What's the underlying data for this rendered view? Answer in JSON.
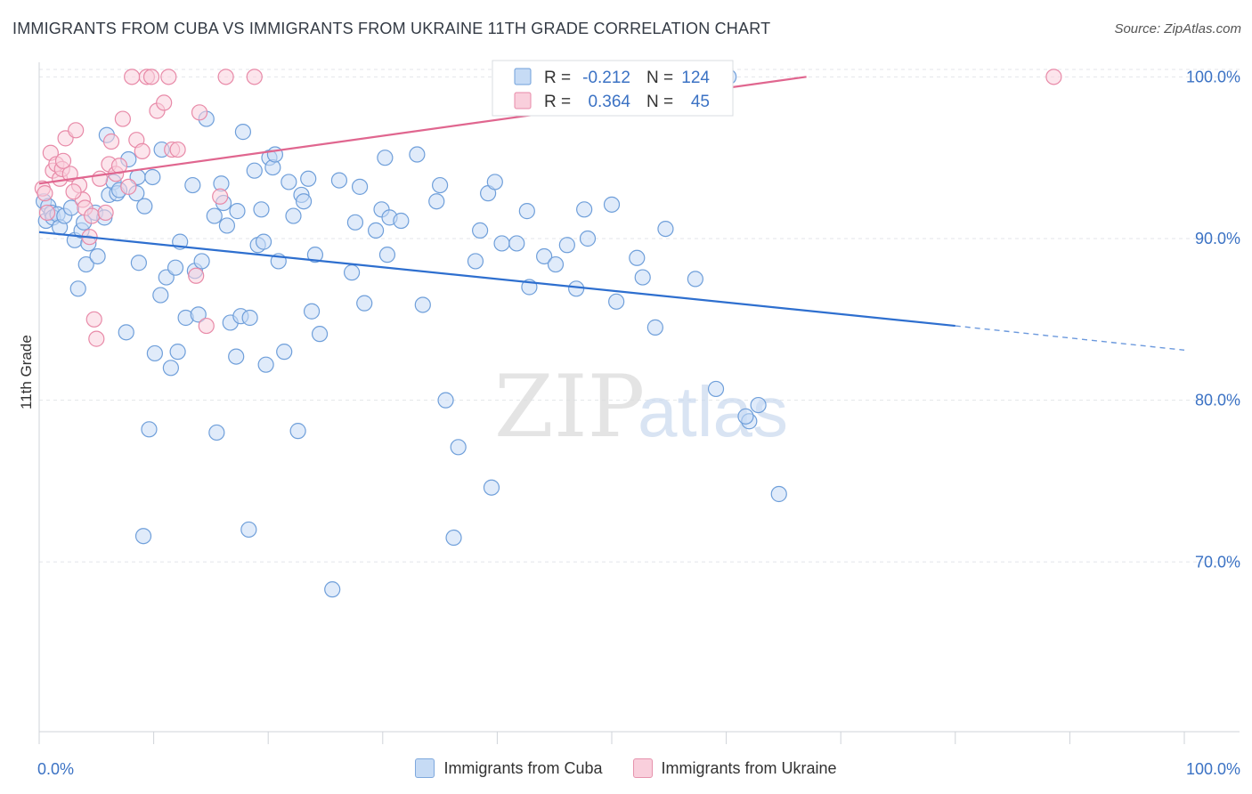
{
  "title": "IMMIGRANTS FROM CUBA VS IMMIGRANTS FROM UKRAINE 11TH GRADE CORRELATION CHART",
  "source": "Source: ZipAtlas.com",
  "watermark": {
    "zip": "ZIP",
    "atlas": "atlas"
  },
  "legend": {
    "r_label": "R =",
    "n_label": "N =",
    "cuba": {
      "r": "-0.212",
      "n": "124"
    },
    "ukraine": {
      "r": "0.364",
      "n": "45"
    }
  },
  "colors": {
    "cuba_fill": "#c6dbf5",
    "cuba_stroke": "#6f9fda",
    "cuba_line": "#2e6fcf",
    "ukraine_fill": "#f9cfdc",
    "ukraine_stroke": "#e88aa8",
    "ukraine_line": "#e0668f",
    "tick_label": "#3b72c4"
  },
  "chart_data": {
    "type": "scatter",
    "title": "IMMIGRANTS FROM CUBA VS IMMIGRANTS FROM UKRAINE 11TH GRADE CORRELATION CHART",
    "xlabel": "",
    "ylabel": "11th Grade",
    "xlim": [
      0,
      100
    ],
    "ylim": [
      59.5,
      100.9
    ],
    "x_tick_labels": [
      "0.0%",
      "100.0%"
    ],
    "y_ticks": [
      70,
      80,
      90,
      100
    ],
    "y_tick_labels": [
      "70.0%",
      "80.0%",
      "90.0%",
      "100.0%"
    ],
    "grid": true,
    "legend_position": "top-center",
    "series": [
      {
        "name": "Immigrants from Cuba",
        "trend": {
          "x0": 0,
          "y0": 90.4,
          "x1": 80,
          "y1": 84.6,
          "dashed_to_x": 100,
          "dashed_to_y": 83.1
        },
        "points": [
          [
            0.4,
            92.3
          ],
          [
            0.6,
            91.1
          ],
          [
            0.8,
            92.0
          ],
          [
            1.1,
            91.6
          ],
          [
            1.2,
            91.3
          ],
          [
            1.6,
            91.5
          ],
          [
            1.8,
            90.7
          ],
          [
            2.2,
            91.4
          ],
          [
            2.8,
            91.9
          ],
          [
            3.1,
            89.9
          ],
          [
            3.4,
            86.9
          ],
          [
            3.7,
            90.5
          ],
          [
            3.9,
            91.0
          ],
          [
            4.1,
            88.4
          ],
          [
            4.3,
            89.7
          ],
          [
            4.9,
            91.6
          ],
          [
            5.1,
            88.9
          ],
          [
            5.7,
            91.3
          ],
          [
            5.9,
            96.4
          ],
          [
            6.1,
            92.7
          ],
          [
            6.5,
            93.5
          ],
          [
            6.8,
            92.8
          ],
          [
            7.0,
            93.0
          ],
          [
            7.6,
            84.2
          ],
          [
            7.8,
            94.9
          ],
          [
            8.5,
            92.8
          ],
          [
            8.6,
            93.8
          ],
          [
            8.7,
            88.5
          ],
          [
            9.1,
            71.6
          ],
          [
            9.2,
            92.0
          ],
          [
            9.6,
            78.2
          ],
          [
            9.9,
            93.8
          ],
          [
            10.1,
            82.9
          ],
          [
            10.6,
            86.5
          ],
          [
            10.7,
            95.5
          ],
          [
            11.1,
            87.6
          ],
          [
            11.5,
            82.0
          ],
          [
            11.9,
            88.2
          ],
          [
            12.1,
            83.0
          ],
          [
            12.3,
            89.8
          ],
          [
            12.8,
            85.1
          ],
          [
            13.4,
            93.3
          ],
          [
            13.6,
            88.0
          ],
          [
            13.9,
            85.3
          ],
          [
            14.2,
            88.6
          ],
          [
            14.6,
            97.4
          ],
          [
            15.3,
            91.4
          ],
          [
            15.5,
            78.0
          ],
          [
            15.9,
            93.4
          ],
          [
            16.1,
            92.2
          ],
          [
            16.4,
            90.8
          ],
          [
            16.7,
            84.8
          ],
          [
            17.2,
            82.7
          ],
          [
            17.3,
            91.7
          ],
          [
            17.6,
            85.2
          ],
          [
            17.8,
            96.6
          ],
          [
            18.3,
            72.0
          ],
          [
            18.4,
            85.1
          ],
          [
            18.8,
            94.2
          ],
          [
            19.1,
            89.6
          ],
          [
            19.4,
            91.8
          ],
          [
            19.6,
            89.8
          ],
          [
            19.8,
            82.2
          ],
          [
            20.1,
            95.0
          ],
          [
            20.4,
            94.4
          ],
          [
            20.6,
            95.2
          ],
          [
            20.9,
            88.6
          ],
          [
            21.4,
            83.0
          ],
          [
            21.8,
            93.5
          ],
          [
            22.2,
            91.4
          ],
          [
            22.6,
            78.1
          ],
          [
            22.9,
            92.7
          ],
          [
            23.1,
            92.3
          ],
          [
            23.5,
            93.7
          ],
          [
            23.8,
            85.5
          ],
          [
            24.1,
            89.0
          ],
          [
            24.5,
            84.1
          ],
          [
            25.6,
            68.3
          ],
          [
            26.2,
            93.6
          ],
          [
            27.3,
            87.9
          ],
          [
            27.6,
            91.0
          ],
          [
            28.0,
            93.2
          ],
          [
            28.4,
            86.0
          ],
          [
            29.4,
            90.5
          ],
          [
            29.9,
            91.8
          ],
          [
            30.2,
            95.0
          ],
          [
            30.4,
            89.0
          ],
          [
            30.6,
            91.3
          ],
          [
            31.6,
            91.1
          ],
          [
            33.0,
            95.2
          ],
          [
            33.5,
            85.9
          ],
          [
            34.7,
            92.3
          ],
          [
            35.0,
            93.3
          ],
          [
            35.5,
            80.0
          ],
          [
            36.2,
            71.5
          ],
          [
            36.6,
            77.1
          ],
          [
            38.1,
            88.6
          ],
          [
            38.5,
            90.5
          ],
          [
            39.2,
            92.8
          ],
          [
            39.5,
            74.6
          ],
          [
            39.8,
            93.5
          ],
          [
            40.4,
            89.7
          ],
          [
            41.7,
            89.7
          ],
          [
            42.6,
            91.7
          ],
          [
            42.8,
            87.0
          ],
          [
            44.1,
            88.9
          ],
          [
            45.1,
            88.4
          ],
          [
            46.1,
            89.6
          ],
          [
            46.9,
            86.9
          ],
          [
            47.6,
            91.8
          ],
          [
            47.9,
            90.0
          ],
          [
            50.0,
            92.1
          ],
          [
            50.4,
            86.1
          ],
          [
            52.2,
            88.8
          ],
          [
            52.7,
            87.6
          ],
          [
            53.8,
            84.5
          ],
          [
            54.7,
            90.6
          ],
          [
            57.3,
            87.5
          ],
          [
            59.1,
            80.7
          ],
          [
            62.0,
            78.7
          ],
          [
            62.8,
            79.7
          ],
          [
            64.6,
            74.2
          ],
          [
            61.7,
            79.0
          ],
          [
            60.2,
            100.0
          ]
        ]
      },
      {
        "name": "Immigrants from Ukraine",
        "trend": {
          "x0": 0,
          "y0": 93.4,
          "x1": 67,
          "y1": 100.0
        },
        "points": [
          [
            0.3,
            93.1
          ],
          [
            0.5,
            92.8
          ],
          [
            0.7,
            91.6
          ],
          [
            1.0,
            95.3
          ],
          [
            1.2,
            94.2
          ],
          [
            1.5,
            94.6
          ],
          [
            1.8,
            93.7
          ],
          [
            2.0,
            94.3
          ],
          [
            2.3,
            96.2
          ],
          [
            2.7,
            94.0
          ],
          [
            3.2,
            96.7
          ],
          [
            3.5,
            93.3
          ],
          [
            3.8,
            92.4
          ],
          [
            4.0,
            91.9
          ],
          [
            4.4,
            90.1
          ],
          [
            4.6,
            91.4
          ],
          [
            4.8,
            85.0
          ],
          [
            5.0,
            83.8
          ],
          [
            5.3,
            93.7
          ],
          [
            5.8,
            91.6
          ],
          [
            6.1,
            94.6
          ],
          [
            6.3,
            96.0
          ],
          [
            6.7,
            94.0
          ],
          [
            7.0,
            94.5
          ],
          [
            7.3,
            97.4
          ],
          [
            7.8,
            93.2
          ],
          [
            8.1,
            100.0
          ],
          [
            8.5,
            96.1
          ],
          [
            9.0,
            95.4
          ],
          [
            9.4,
            100.0
          ],
          [
            9.8,
            100.0
          ],
          [
            10.3,
            97.9
          ],
          [
            10.9,
            98.4
          ],
          [
            11.3,
            100.0
          ],
          [
            11.6,
            95.5
          ],
          [
            12.1,
            95.5
          ],
          [
            13.7,
            87.7
          ],
          [
            14.0,
            97.8
          ],
          [
            14.6,
            84.6
          ],
          [
            15.8,
            92.6
          ],
          [
            16.3,
            100.0
          ],
          [
            18.8,
            100.0
          ],
          [
            88.6,
            100.0
          ],
          [
            2.1,
            94.8
          ],
          [
            3.0,
            92.9
          ]
        ]
      }
    ]
  },
  "axis_label_y": "11th Grade",
  "bottom_legend": {
    "cuba": "Immigrants from Cuba",
    "ukraine": "Immigrants from Ukraine"
  }
}
